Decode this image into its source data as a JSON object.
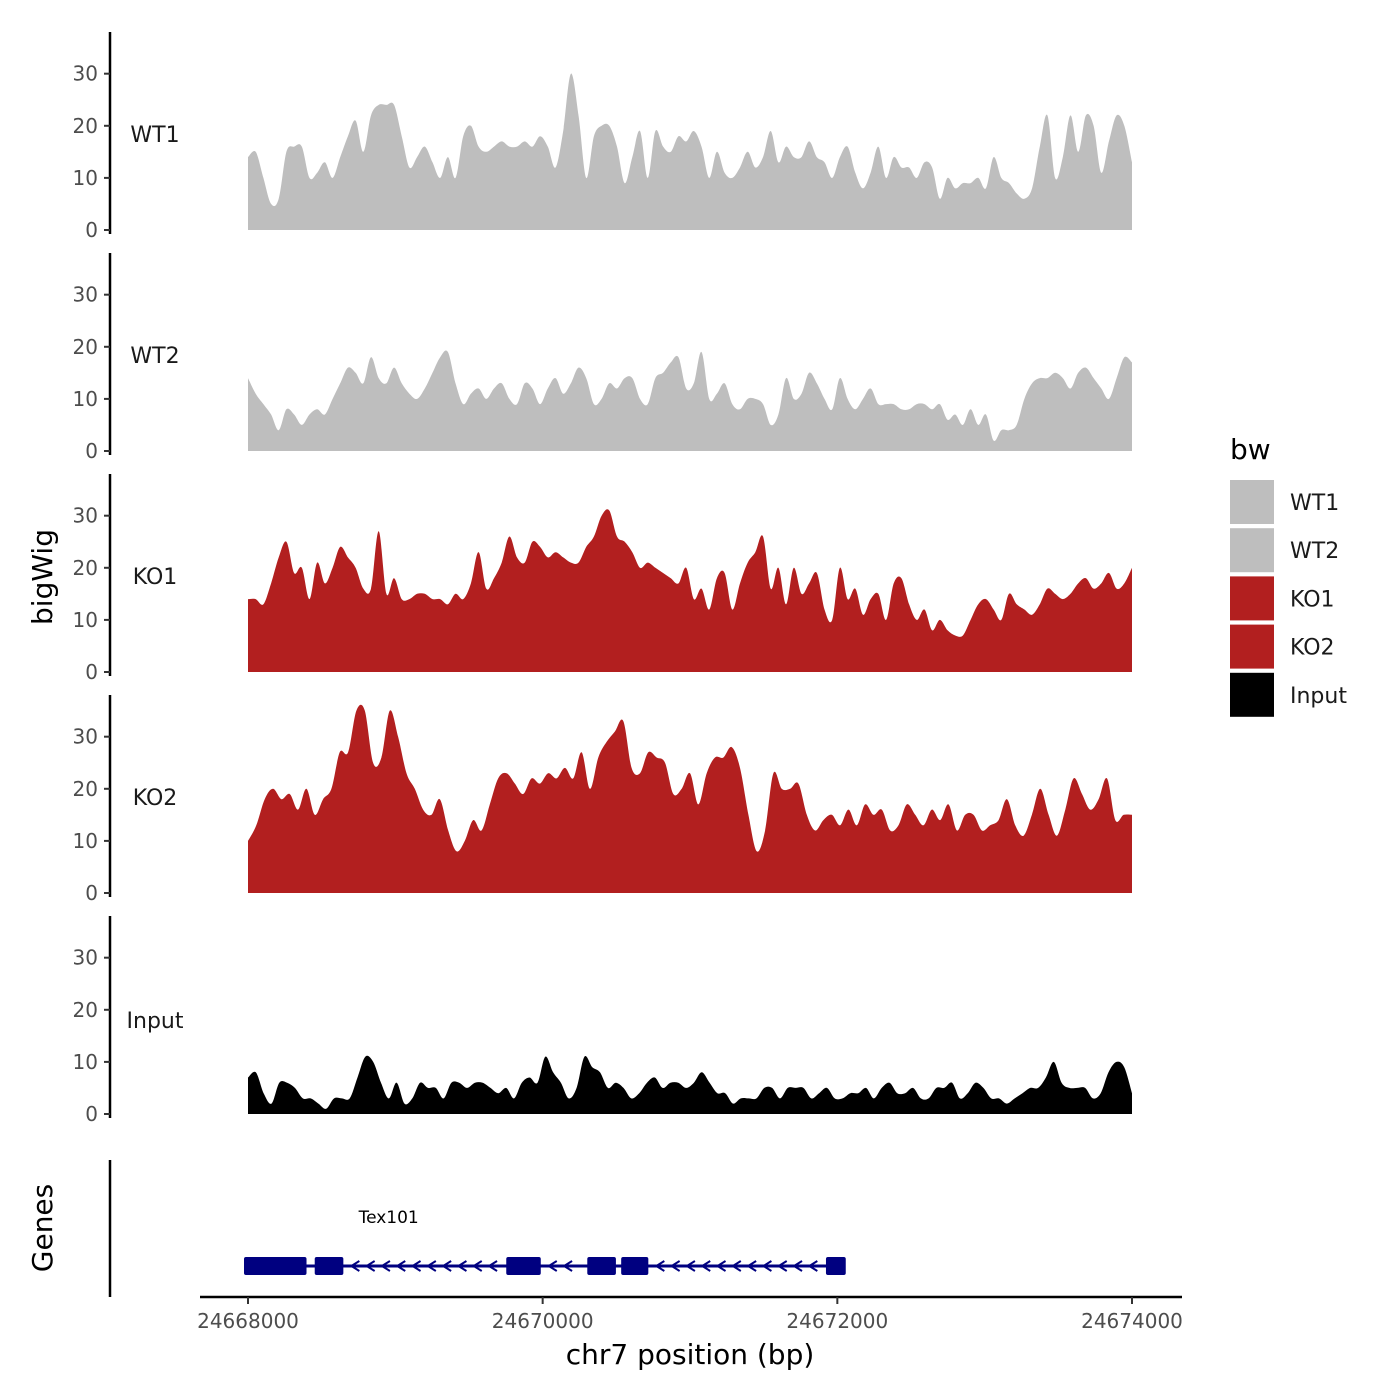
{
  "chart_data": {
    "type": "area",
    "ylabel": "bigWig",
    "genes_label": "Genes",
    "xlabel": "chr7 position (bp)",
    "xlim": [
      24668000,
      24674000
    ],
    "x_ticks": [
      24668000,
      24670000,
      24672000,
      24674000
    ],
    "x_tick_labels": [
      "24668000",
      "24670000",
      "24672000",
      "24674000"
    ],
    "ylim": [
      0,
      38
    ],
    "y_ticks": [
      0,
      10,
      20,
      30
    ],
    "y_tick_labels": [
      "0",
      "10",
      "20",
      "30"
    ],
    "x_start": 24668000,
    "x_step": 50,
    "legend": {
      "title": "bw",
      "placement": "right",
      "entries": [
        {
          "label": "WT1",
          "color": "#bebebe"
        },
        {
          "label": "WT2",
          "color": "#bebebe"
        },
        {
          "label": "KO1",
          "color": "#b21f1f"
        },
        {
          "label": "KO2",
          "color": "#b21f1f"
        },
        {
          "label": "Input",
          "color": "#000000"
        }
      ]
    },
    "series": [
      {
        "name": "WT1",
        "color": "#bebebe",
        "values": [
          14,
          15,
          10,
          5,
          6,
          15,
          16,
          16,
          10,
          11,
          13,
          10,
          14,
          18,
          21,
          15,
          22,
          24,
          24,
          24,
          18,
          12,
          14,
          16,
          13,
          10,
          14,
          10,
          18,
          20,
          16,
          15,
          16,
          17,
          16,
          16,
          17,
          16,
          18,
          16,
          12,
          19,
          30,
          22,
          10,
          18,
          20,
          20,
          16,
          9,
          14,
          19,
          10,
          19,
          16,
          15,
          18,
          17,
          19,
          16,
          10,
          15,
          11,
          10,
          12,
          15,
          12,
          14,
          19,
          13,
          16,
          14,
          14,
          17,
          14,
          13,
          10,
          14,
          16,
          11,
          8,
          11,
          16,
          10,
          14,
          12,
          12,
          10,
          13,
          12,
          6,
          10,
          8,
          9,
          9,
          10,
          8,
          14,
          10,
          9,
          7,
          6,
          8,
          16,
          22,
          10,
          14,
          22,
          15,
          22,
          20,
          11,
          17,
          22,
          20,
          13
        ]
      },
      {
        "name": "WT2",
        "color": "#bebebe",
        "values": [
          14,
          11,
          9,
          7,
          4,
          8,
          7,
          5,
          7,
          8,
          7,
          10,
          13,
          16,
          15,
          13,
          18,
          14,
          13,
          16,
          13,
          11,
          10,
          12,
          15,
          18,
          19,
          13,
          9,
          11,
          12,
          10,
          12,
          13,
          10,
          9,
          13,
          12,
          9,
          12,
          14,
          11,
          13,
          16,
          14,
          9,
          10,
          13,
          12,
          14,
          14,
          10,
          9,
          14,
          15,
          17,
          18,
          12,
          13,
          19,
          10,
          11,
          13,
          9,
          8,
          10,
          10,
          9,
          5,
          7,
          14,
          10,
          11,
          15,
          13,
          10,
          8,
          14,
          10,
          8,
          10,
          12,
          9,
          9,
          9,
          8,
          8,
          9,
          9,
          8,
          9,
          6,
          7,
          5,
          8,
          5,
          7,
          2,
          4,
          4,
          5,
          10,
          13,
          14,
          14,
          15,
          14,
          12,
          15,
          16,
          14,
          12,
          10,
          14,
          18,
          17
        ]
      },
      {
        "name": "KO1",
        "color": "#b21f1f",
        "values": [
          14,
          14,
          13,
          17,
          22,
          25,
          19,
          20,
          14,
          21,
          17,
          20,
          24,
          22,
          20,
          16,
          16,
          27,
          15,
          18,
          14,
          14,
          15,
          15,
          14,
          14,
          13,
          15,
          14,
          17,
          23,
          16,
          18,
          21,
          26,
          22,
          21,
          25,
          24,
          22,
          23,
          22,
          21,
          21,
          24,
          26,
          30,
          31,
          26,
          25,
          23,
          20,
          21,
          20,
          19,
          18,
          17,
          20,
          14,
          16,
          12,
          18,
          19,
          12,
          17,
          21,
          23,
          26,
          16,
          20,
          13,
          20,
          15,
          17,
          19,
          12,
          10,
          20,
          14,
          16,
          11,
          14,
          15,
          10,
          17,
          18,
          13,
          10,
          12,
          8,
          10,
          8,
          7,
          7,
          10,
          13,
          14,
          12,
          10,
          15,
          13,
          12,
          11,
          13,
          16,
          15,
          14,
          15,
          17,
          18,
          16,
          17,
          19,
          16,
          17,
          20
        ]
      },
      {
        "name": "KO2",
        "color": "#b21f1f",
        "values": [
          10,
          13,
          18,
          20,
          18,
          19,
          16,
          20,
          15,
          18,
          20,
          27,
          27,
          35,
          35,
          25,
          26,
          35,
          30,
          23,
          20,
          16,
          15,
          18,
          12,
          8,
          10,
          14,
          12,
          17,
          22,
          23,
          21,
          19,
          22,
          21,
          23,
          22,
          24,
          22,
          27,
          20,
          26,
          29,
          31,
          33,
          24,
          23,
          27,
          26,
          25,
          19,
          20,
          23,
          17,
          23,
          26,
          26,
          28,
          24,
          15,
          8,
          12,
          23,
          20,
          20,
          21,
          15,
          12,
          14,
          15,
          13,
          16,
          13,
          17,
          15,
          16,
          12,
          13,
          17,
          15,
          13,
          16,
          14,
          17,
          12,
          15,
          15,
          12,
          13,
          14,
          18,
          13,
          11,
          15,
          20,
          15,
          11,
          16,
          22,
          19,
          16,
          18,
          22,
          14,
          15,
          15
        ]
      },
      {
        "name": "Input",
        "color": "#000000",
        "values": [
          7,
          8,
          4,
          2,
          6,
          6,
          5,
          3,
          3,
          2,
          1,
          3,
          3,
          3,
          7,
          11,
          10,
          6,
          3,
          6,
          2,
          3,
          6,
          5,
          5,
          3,
          6,
          6,
          5,
          6,
          6,
          5,
          4,
          5,
          3,
          6,
          7,
          6,
          11,
          8,
          6,
          3,
          5,
          11,
          9,
          8,
          5,
          6,
          5,
          3,
          4,
          6,
          7,
          5,
          6,
          6,
          5,
          6,
          8,
          6,
          4,
          4,
          2,
          3,
          3,
          3,
          5,
          5,
          3,
          5,
          5,
          5,
          3,
          4,
          5,
          3,
          3,
          4,
          4,
          5,
          3,
          5,
          6,
          4,
          4,
          5,
          3,
          3,
          5,
          5,
          6,
          3,
          4,
          6,
          5,
          3,
          3,
          2,
          3,
          4,
          5,
          5,
          7,
          10,
          6,
          5,
          5,
          5,
          3,
          4,
          8,
          10,
          9,
          4
        ]
      }
    ],
    "genes": [
      {
        "name": "Tex101",
        "strand": "-",
        "start": 24668000,
        "end": 24672000,
        "exons": [
          [
            24668000,
            24668370
          ],
          [
            24668480,
            24668620
          ],
          [
            24669780,
            24669960
          ],
          [
            24670330,
            24670470
          ],
          [
            24670560,
            24670690
          ],
          [
            24671950,
            24672030
          ]
        ]
      }
    ]
  }
}
